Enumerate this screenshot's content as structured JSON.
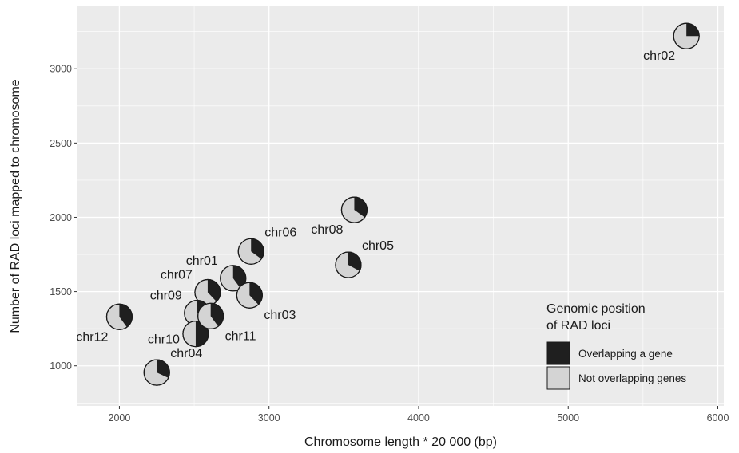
{
  "chart_data": {
    "type": "scatter",
    "subtype": "pie-glyph scatter",
    "title": "",
    "xlabel": "Chromosome length * 20 000 (bp)",
    "ylabel": "Number of RAD loci mapped to chromosome",
    "xlim": [
      1720,
      6040
    ],
    "ylim": [
      730,
      3420
    ],
    "x_ticks": [
      2000,
      3000,
      4000,
      5000,
      6000
    ],
    "y_ticks": [
      1000,
      1500,
      2000,
      2500,
      3000
    ],
    "grid": true,
    "legend": {
      "title_line1": "Genomic position",
      "title_line2": "of RAD loci",
      "placement": "bottom-right inside plot",
      "entries": [
        {
          "label": "Overlapping a gene",
          "color": "#1f1f1f"
        },
        {
          "label": "Not overlapping genes",
          "color": "#d4d4d4"
        }
      ]
    },
    "colors": {
      "panel": "#ebebeb",
      "grid": "#ffffff",
      "overlapping": "#1f1f1f",
      "not_overlapping": "#d4d4d4"
    },
    "points": [
      {
        "name": "chr01",
        "x": 2760,
        "y": 1590,
        "overlap_fraction": 0.4,
        "label_pos": "upper-left"
      },
      {
        "name": "chr02",
        "x": 5790,
        "y": 3220,
        "overlap_fraction": 0.25,
        "label_pos": "lower-left"
      },
      {
        "name": "chr03",
        "x": 2870,
        "y": 1475,
        "overlap_fraction": 0.38,
        "label_pos": "lower-right"
      },
      {
        "name": "chr04",
        "x": 2250,
        "y": 955,
        "overlap_fraction": 0.32,
        "label_pos": "upper-right"
      },
      {
        "name": "chr05",
        "x": 3530,
        "y": 1680,
        "overlap_fraction": 0.33,
        "label_pos": "upper-right"
      },
      {
        "name": "chr06",
        "x": 2880,
        "y": 1770,
        "overlap_fraction": 0.35,
        "label_pos": "upper-right"
      },
      {
        "name": "chr07",
        "x": 2590,
        "y": 1495,
        "overlap_fraction": 0.38,
        "label_pos": "upper-left"
      },
      {
        "name": "chr08",
        "x": 3570,
        "y": 2050,
        "overlap_fraction": 0.35,
        "label_pos": "lower-left"
      },
      {
        "name": "chr09",
        "x": 2520,
        "y": 1355,
        "overlap_fraction": 0.35,
        "label_pos": "upper-left"
      },
      {
        "name": "chr10",
        "x": 2510,
        "y": 1215,
        "overlap_fraction": 0.5,
        "label_pos": "left"
      },
      {
        "name": "chr11",
        "x": 2610,
        "y": 1335,
        "overlap_fraction": 0.4,
        "label_pos": "lower-right"
      },
      {
        "name": "chr12",
        "x": 2000,
        "y": 1330,
        "overlap_fraction": 0.4,
        "label_pos": "lower-left"
      }
    ]
  }
}
